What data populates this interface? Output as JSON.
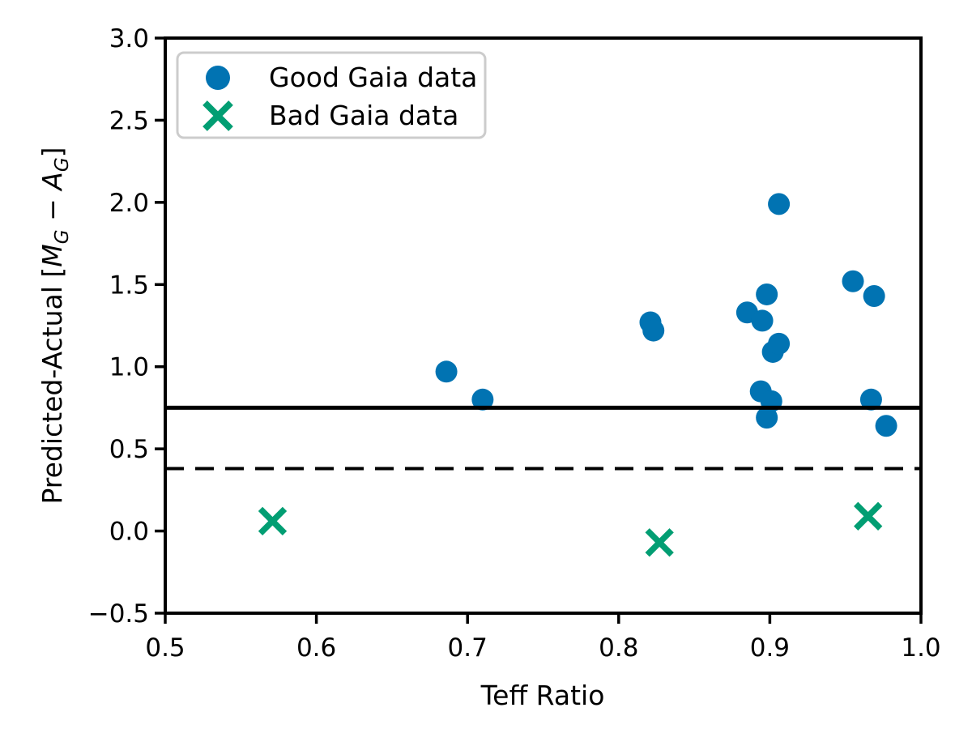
{
  "figure": {
    "background": "#ffffff"
  },
  "chart_data": {
    "type": "scatter",
    "title": "",
    "xlabel": "Teff Ratio",
    "ylabel": "Predicted-Actual [M_G − A_G]",
    "ylabel_parts": [
      {
        "t": "Predicted-Actual ["
      },
      {
        "t": "M",
        "i": true
      },
      {
        "t": "G",
        "i": true,
        "sub": true
      },
      {
        "t": " − "
      },
      {
        "t": "A",
        "i": true
      },
      {
        "t": "G",
        "i": true,
        "sub": true
      },
      {
        "t": "]"
      }
    ],
    "xlim": [
      0.5,
      1.0
    ],
    "ylim": [
      -0.5,
      3.0
    ],
    "x_ticks": [
      0.5,
      0.6,
      0.7,
      0.8,
      0.9,
      1.0
    ],
    "x_tick_labels": [
      "0.5",
      "0.6",
      "0.7",
      "0.8",
      "0.9",
      "1.0"
    ],
    "y_ticks": [
      -0.5,
      0.0,
      0.5,
      1.0,
      1.5,
      2.0,
      2.5,
      3.0
    ],
    "y_tick_labels": [
      "−0.5",
      "0.0",
      "0.5",
      "1.0",
      "1.5",
      "2.0",
      "2.5",
      "3.0"
    ],
    "grid": false,
    "legend_position": "upper left",
    "axis_color": "#000000",
    "series": [
      {
        "name": "Good Gaia data",
        "marker": "circle",
        "color": "#0173B2",
        "points": [
          [
            0.686,
            0.97
          ],
          [
            0.71,
            0.8
          ],
          [
            0.821,
            1.27
          ],
          [
            0.823,
            1.22
          ],
          [
            0.885,
            1.33
          ],
          [
            0.895,
            1.28
          ],
          [
            0.898,
            1.44
          ],
          [
            0.902,
            1.09
          ],
          [
            0.906,
            1.14
          ],
          [
            0.906,
            1.99
          ],
          [
            0.894,
            0.85
          ],
          [
            0.901,
            0.79
          ],
          [
            0.898,
            0.69
          ],
          [
            0.955,
            1.52
          ],
          [
            0.969,
            1.43
          ],
          [
            0.967,
            0.8
          ],
          [
            0.977,
            0.64
          ]
        ]
      },
      {
        "name": "Bad Gaia data",
        "marker": "x",
        "color": "#029E73",
        "points": [
          [
            0.571,
            0.06
          ],
          [
            0.827,
            -0.07
          ],
          [
            0.965,
            0.09
          ]
        ]
      }
    ],
    "reference_lines": [
      {
        "y": 0.75,
        "style": "solid",
        "color": "#000000"
      },
      {
        "y": 0.38,
        "style": "dashed",
        "color": "#000000"
      }
    ]
  }
}
